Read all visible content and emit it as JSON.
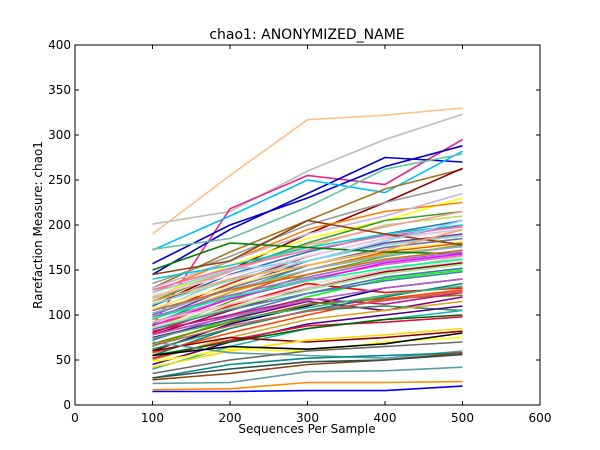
{
  "chart_data": {
    "type": "line",
    "title": "chao1: ANONYMIZED_NAME",
    "xlabel": "Sequences Per Sample",
    "ylabel": "Rarefaction Measure: chao1",
    "xlim": [
      0,
      600
    ],
    "ylim": [
      0,
      400
    ],
    "xticks": [
      "0",
      "100",
      "200",
      "300",
      "400",
      "500",
      "600"
    ],
    "yticks": [
      "0",
      "50",
      "100",
      "150",
      "200",
      "250",
      "300",
      "350",
      "400"
    ],
    "grid": false,
    "legend": "none",
    "x": [
      100,
      200,
      300,
      400,
      500
    ],
    "series": [
      {
        "color": "#FDC086",
        "values": [
          190,
          255,
          317,
          322,
          330
        ]
      },
      {
        "color": "#BDBDBD",
        "values": [
          201,
          215,
          260,
          295,
          323
        ]
      },
      {
        "color": "#E7298A",
        "values": [
          88,
          218,
          255,
          245,
          295
        ]
      },
      {
        "color": "#0000CC",
        "values": [
          145,
          195,
          235,
          275,
          270
        ]
      },
      {
        "color": "#0000CC",
        "values": [
          157,
          200,
          230,
          265,
          288
        ]
      },
      {
        "color": "#00BFFF",
        "values": [
          172,
          210,
          250,
          236,
          282
        ]
      },
      {
        "color": "#66C2A5",
        "values": [
          173,
          185,
          220,
          262,
          279
        ]
      },
      {
        "color": "#A6761D",
        "values": [
          130,
          170,
          205,
          240,
          262
        ]
      },
      {
        "color": "#8B0000",
        "values": [
          110,
          150,
          190,
          225,
          263
        ]
      },
      {
        "color": "#999999",
        "values": [
          135,
          165,
          200,
          225,
          245
        ]
      },
      {
        "color": "#FFFF00",
        "values": [
          120,
          155,
          185,
          205,
          230
        ]
      },
      {
        "color": "#FF7F00",
        "values": [
          125,
          160,
          195,
          215,
          225
        ]
      },
      {
        "color": "#33A02C",
        "values": [
          115,
          150,
          180,
          205,
          215
        ]
      },
      {
        "color": "#CAB2D6",
        "values": [
          130,
          160,
          190,
          210,
          235
        ]
      },
      {
        "color": "#B3DE69",
        "values": [
          120,
          150,
          175,
          200,
          210
        ]
      },
      {
        "color": "#1F78B4",
        "values": [
          110,
          145,
          170,
          190,
          205
        ]
      },
      {
        "color": "#E31A1C",
        "values": [
          100,
          135,
          165,
          185,
          200
        ]
      },
      {
        "color": "#FB9A99",
        "values": [
          118,
          148,
          178,
          198,
          215
        ]
      },
      {
        "color": "#A6CEE3",
        "values": [
          105,
          140,
          165,
          185,
          195
        ]
      },
      {
        "color": "#6A3D9A",
        "values": [
          95,
          130,
          160,
          180,
          190
        ]
      },
      {
        "color": "#1B9E77",
        "values": [
          90,
          125,
          155,
          175,
          185
        ]
      },
      {
        "color": "#D95F02",
        "values": [
          85,
          120,
          150,
          170,
          180
        ]
      },
      {
        "color": "#7570B3",
        "values": [
          100,
          130,
          155,
          175,
          185
        ]
      },
      {
        "color": "#66A61E",
        "values": [
          80,
          115,
          145,
          165,
          178
        ]
      },
      {
        "color": "#E6AB02",
        "values": [
          95,
          125,
          150,
          168,
          176
        ]
      },
      {
        "color": "#00CED1",
        "values": [
          140,
          155,
          175,
          190,
          200
        ]
      },
      {
        "color": "#FF69B4",
        "values": [
          128,
          152,
          172,
          188,
          198
        ]
      },
      {
        "color": "#8DD3C7",
        "values": [
          112,
          138,
          160,
          178,
          188
        ]
      },
      {
        "color": "#80B1D3",
        "values": [
          102,
          128,
          150,
          166,
          176
        ]
      },
      {
        "color": "#FCCDE5",
        "values": [
          122,
          144,
          166,
          184,
          194
        ]
      },
      {
        "color": "#BC80BD",
        "values": [
          92,
          118,
          140,
          156,
          166
        ]
      },
      {
        "color": "#CCEBC5",
        "values": [
          86,
          112,
          134,
          150,
          160
        ]
      },
      {
        "color": "#FFED6F",
        "values": [
          108,
          132,
          156,
          172,
          182
        ]
      },
      {
        "color": "#A50026",
        "values": [
          78,
          105,
          130,
          148,
          158
        ]
      },
      {
        "color": "#4575B4",
        "values": [
          72,
          100,
          124,
          142,
          152
        ]
      },
      {
        "color": "#008000",
        "values": [
          150,
          180,
          175,
          170,
          168
        ]
      },
      {
        "color": "#8B4513",
        "values": [
          145,
          160,
          205,
          190,
          178
        ]
      },
      {
        "color": "#FF00FF",
        "values": [
          88,
          118,
          138,
          158,
          168
        ]
      },
      {
        "color": "#00FF00",
        "values": [
          65,
          95,
          120,
          140,
          150
        ]
      },
      {
        "color": "#FF0000",
        "values": [
          80,
          110,
          135,
          125,
          130
        ]
      },
      {
        "color": "#000080",
        "values": [
          60,
          90,
          110,
          130,
          140
        ]
      },
      {
        "color": "#800080",
        "values": [
          75,
          95,
          115,
          105,
          120
        ]
      },
      {
        "color": "#008080",
        "values": [
          55,
          85,
          105,
          120,
          135
        ]
      },
      {
        "color": "#808000",
        "values": [
          68,
          92,
          112,
          118,
          122
        ]
      },
      {
        "color": "#C71585",
        "values": [
          82,
          100,
          118,
          112,
          125
        ]
      },
      {
        "color": "#FF4500",
        "values": [
          58,
          80,
          100,
          118,
          128
        ]
      },
      {
        "color": "#2E8B57",
        "values": [
          62,
          85,
          105,
          110,
          105
        ]
      },
      {
        "color": "#DAA520",
        "values": [
          50,
          75,
          95,
          105,
          115
        ]
      },
      {
        "color": "#4B0082",
        "values": [
          45,
          70,
          90,
          100,
          110
        ]
      },
      {
        "color": "#20B2AA",
        "values": [
          40,
          65,
          85,
          95,
          105
        ]
      },
      {
        "color": "#DC143C",
        "values": [
          52,
          72,
          88,
          92,
          98
        ]
      },
      {
        "color": "#006400",
        "values": [
          55,
          70,
          85,
          95,
          100
        ]
      },
      {
        "color": "#8B0000",
        "values": [
          60,
          75,
          70,
          75,
          82
        ]
      },
      {
        "color": "#FFD700",
        "values": [
          42,
          60,
          72,
          78,
          85
        ]
      },
      {
        "color": "#FFFF00",
        "values": [
          48,
          62,
          60,
          70,
          75
        ]
      },
      {
        "color": "#5F9EA0",
        "values": [
          70,
          58,
          55,
          52,
          60
        ]
      },
      {
        "color": "#000000",
        "values": [
          55,
          65,
          62,
          68,
          80
        ]
      },
      {
        "color": "#696969",
        "values": [
          35,
          50,
          60,
          65,
          70
        ]
      },
      {
        "color": "#008B8B",
        "values": [
          30,
          45,
          52,
          55,
          58
        ]
      },
      {
        "color": "#8B4513",
        "values": [
          28,
          35,
          45,
          50,
          58
        ]
      },
      {
        "color": "#2F4F4F",
        "values": [
          30,
          40,
          48,
          50,
          56
        ]
      },
      {
        "color": "#5F9EA0",
        "values": [
          24,
          25,
          37,
          38,
          42
        ]
      },
      {
        "color": "#FF8C00",
        "values": [
          17,
          18,
          25,
          25,
          26
        ]
      },
      {
        "color": "#0000FF",
        "values": [
          15,
          15,
          16,
          16,
          21
        ]
      },
      {
        "color": "#87CEFA",
        "values": [
          125,
          150,
          160,
          182,
          205
        ]
      },
      {
        "color": "#F4A460",
        "values": [
          115,
          140,
          155,
          172,
          195
        ]
      },
      {
        "color": "#9370DB",
        "values": [
          98,
          122,
          142,
          160,
          170
        ]
      },
      {
        "color": "#90EE90",
        "values": [
          85,
          108,
          128,
          146,
          156
        ]
      },
      {
        "color": "#FFB6C1",
        "values": [
          92,
          112,
          130,
          150,
          165
        ]
      },
      {
        "color": "#D2691E",
        "values": [
          105,
          128,
          145,
          162,
          172
        ]
      },
      {
        "color": "#00FA9A",
        "values": [
          96,
          120,
          138,
          152,
          162
        ]
      },
      {
        "color": "#4682B4",
        "values": [
          84,
          106,
          124,
          138,
          148
        ]
      },
      {
        "color": "#BA55D3",
        "values": [
          78,
          98,
          116,
          130,
          140
        ]
      },
      {
        "color": "#CD5C5C",
        "values": [
          66,
          88,
          104,
          116,
          126
        ]
      },
      {
        "color": "#3CB371",
        "values": [
          74,
          94,
          108,
          122,
          132
        ]
      }
    ]
  }
}
